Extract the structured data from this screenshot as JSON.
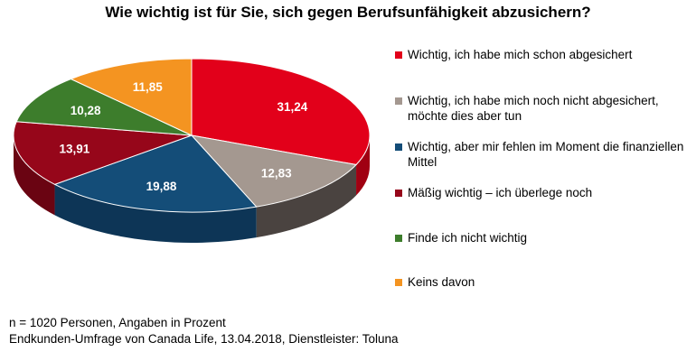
{
  "chart_data": {
    "type": "pie",
    "title": "Wie wichtig ist für Sie, sich gegen Berufsunfähigkeit abzusichern?",
    "slices": [
      {
        "label": "Wichtig, ich habe mich schon abgesichert",
        "value": 31.24,
        "value_label": "31,24",
        "color": "#e2001a",
        "side_color": "#a00012"
      },
      {
        "label": "Wichtig, ich habe mich noch nicht abgesichert, möchte dies aber tun",
        "value": 12.83,
        "value_label": "12,83",
        "color": "#a49890",
        "side_color": "#4a4340"
      },
      {
        "label": "Wichtig, aber mir fehlen im Moment die finanziellen Mittel",
        "value": 19.88,
        "value_label": "19,88",
        "color": "#144d78",
        "side_color": "#0d3556"
      },
      {
        "label": "Mäßig wichtig – ich überlege noch",
        "value": 13.91,
        "value_label": "13,91",
        "color": "#96061a",
        "side_color": "#6a0412"
      },
      {
        "label": "Finde ich nicht wichtig",
        "value": 10.28,
        "value_label": "10,28",
        "color": "#3d7d2c",
        "side_color": "#2a5a1e"
      },
      {
        "label": "Keins davon",
        "value": 11.85,
        "value_label": "11,85",
        "color": "#f49421",
        "side_color": "#b86a12"
      }
    ],
    "legend_position": "right"
  },
  "footnotes": [
    "n = 1020 Personen, Angaben in Prozent",
    "Endkunden-Umfrage von Canada Life, 13.04.2018, Dienstleister: Toluna"
  ]
}
